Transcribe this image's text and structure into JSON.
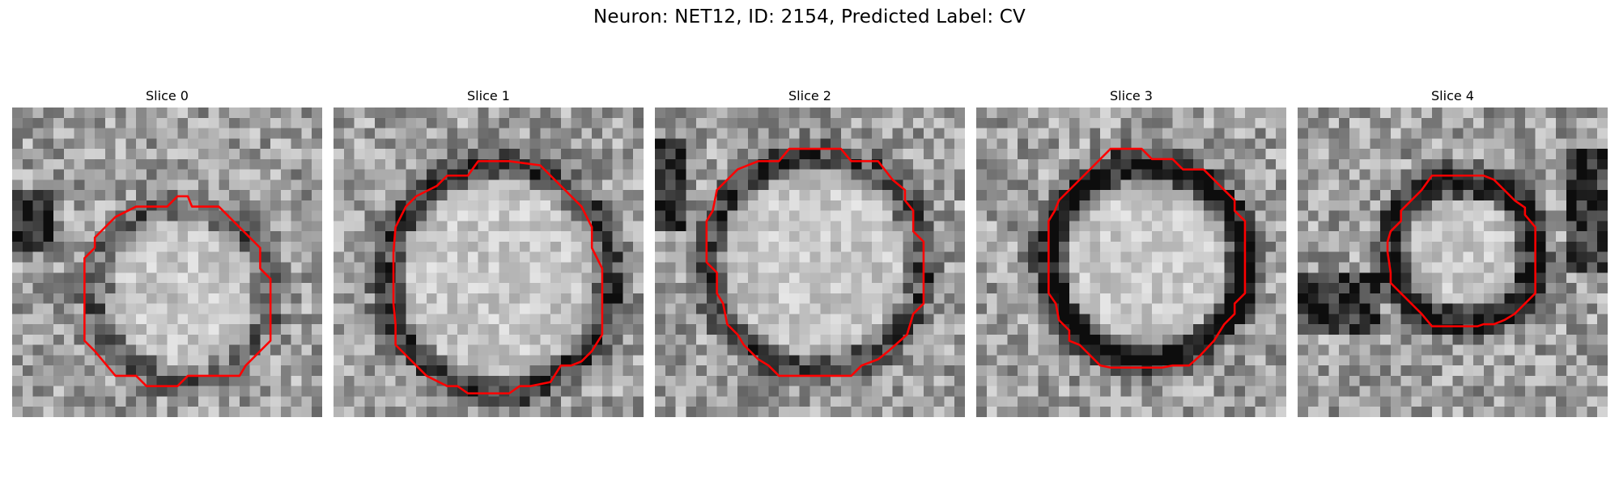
{
  "figure": {
    "title": "Neuron: NET12, ID: 2154, Predicted Label: CV"
  },
  "slices": [
    {
      "label": "Slice 0",
      "seed": 11,
      "ring_darkness": 0.25,
      "contour_color": "#ff0000"
    },
    {
      "label": "Slice 1",
      "seed": 23,
      "ring_darkness": 0.45,
      "contour_color": "#ff0000"
    },
    {
      "label": "Slice 2",
      "seed": 37,
      "ring_darkness": 0.4,
      "contour_color": "#ff0000"
    },
    {
      "label": "Slice 3",
      "seed": 51,
      "ring_darkness": 0.7,
      "contour_color": "#ff0000"
    },
    {
      "label": "Slice 4",
      "seed": 67,
      "ring_darkness": 0.6,
      "contour_color": "#ff0000"
    }
  ],
  "colors": {
    "contour": "#ff0000",
    "background": "#ffffff"
  }
}
